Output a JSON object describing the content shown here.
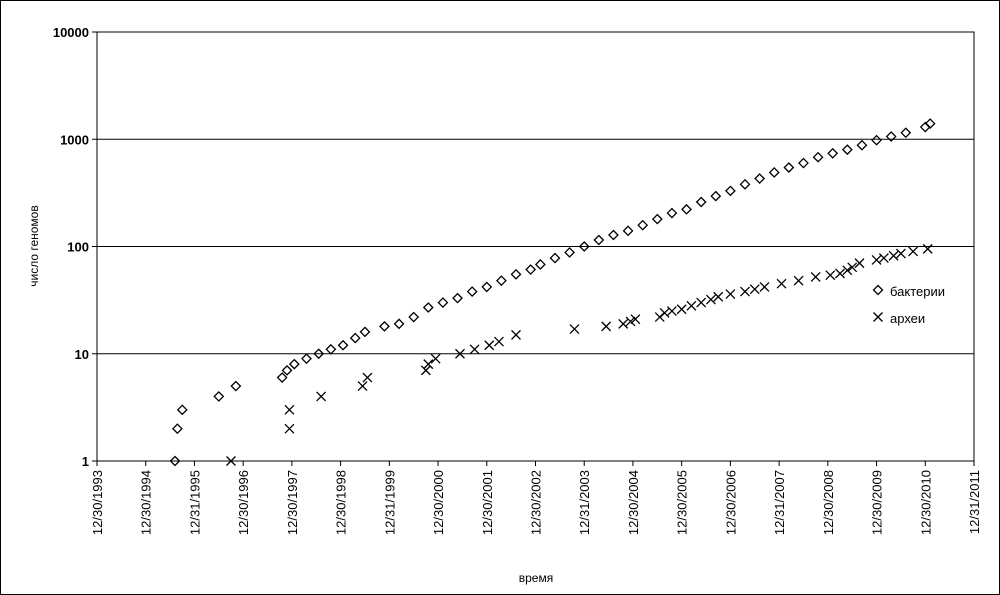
{
  "chart_data": {
    "type": "scatter",
    "title": "",
    "xlabel": "время",
    "ylabel": "число геномов",
    "y_scale": "log",
    "ylim": [
      1,
      10000
    ],
    "y_ticks": [
      "10000",
      "1000",
      "100",
      "10",
      "1"
    ],
    "x_ticks": [
      "12/30/1993",
      "12/30/1994",
      "12/31/1995",
      "12/30/1996",
      "12/30/1997",
      "12/30/1998",
      "12/31/1999",
      "12/30/2000",
      "12/30/2001",
      "12/30/2002",
      "12/31/2003",
      "12/30/2004",
      "12/30/2005",
      "12/30/2006",
      "12/31/2007",
      "12/30/2008",
      "12/30/2009",
      "12/30/2010",
      "12/31/2011"
    ],
    "xlim": [
      1994.0,
      2012.0
    ],
    "grid": "horizontal",
    "legend_position": "right",
    "series": [
      {
        "name": "бактерии",
        "marker": "diamond",
        "x": [
          1995.6,
          1995.65,
          1995.75,
          1996.5,
          1996.85,
          1997.8,
          1997.9,
          1998.05,
          1998.3,
          1998.55,
          1998.8,
          1999.05,
          1999.3,
          1999.5,
          1999.9,
          2000.2,
          2000.5,
          2000.8,
          2001.1,
          2001.4,
          2001.7,
          2002.0,
          2002.3,
          2002.6,
          2002.9,
          2003.1,
          2003.4,
          2003.7,
          2004.0,
          2004.3,
          2004.6,
          2004.9,
          2005.2,
          2005.5,
          2005.8,
          2006.1,
          2006.4,
          2006.7,
          2007.0,
          2007.3,
          2007.6,
          2007.9,
          2008.2,
          2008.5,
          2008.8,
          2009.1,
          2009.4,
          2009.7,
          2010.0,
          2010.3,
          2010.6,
          2011.0,
          2011.1
        ],
        "y": [
          1,
          2,
          3,
          4,
          5,
          6,
          7,
          8,
          9,
          10,
          11,
          12,
          14,
          16,
          18,
          19,
          22,
          27,
          30,
          33,
          38,
          42,
          48,
          55,
          61,
          68,
          78,
          88,
          100,
          115,
          128,
          140,
          158,
          180,
          205,
          222,
          260,
          295,
          330,
          380,
          430,
          490,
          545,
          600,
          680,
          740,
          800,
          880,
          980,
          1060,
          1150,
          1300,
          1400
        ]
      },
      {
        "name": "археи",
        "marker": "x",
        "x": [
          1996.75,
          1997.95,
          1997.95,
          1998.6,
          1999.45,
          1999.55,
          2000.75,
          2000.8,
          2000.95,
          2001.45,
          2001.75,
          2002.05,
          2002.25,
          2002.6,
          2003.8,
          2004.45,
          2004.8,
          2004.95,
          2005.05,
          2005.55,
          2005.65,
          2005.8,
          2006.0,
          2006.2,
          2006.4,
          2006.6,
          2006.75,
          2007.0,
          2007.3,
          2007.5,
          2007.7,
          2008.05,
          2008.4,
          2008.75,
          2009.05,
          2009.25,
          2009.4,
          2009.5,
          2009.65,
          2010.0,
          2010.15,
          2010.35,
          2010.5,
          2010.75,
          2011.05
        ],
        "y": [
          1,
          2,
          3,
          4,
          5,
          6,
          7,
          8,
          9,
          10,
          11,
          12,
          13,
          15,
          17,
          18,
          19,
          20,
          21,
          22,
          24,
          25,
          26,
          28,
          30,
          32,
          34,
          36,
          38,
          40,
          42,
          45,
          48,
          52,
          54,
          56,
          60,
          64,
          70,
          75,
          78,
          82,
          86,
          90,
          95
        ]
      }
    ]
  }
}
